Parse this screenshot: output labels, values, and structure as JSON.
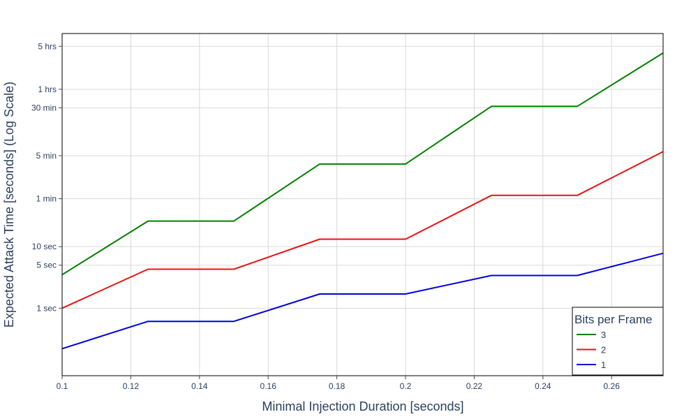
{
  "chart_data": {
    "type": "line",
    "title": "",
    "xlabel": "Minimal Injection Duration [seconds]",
    "ylabel": "Expected Attack Time [seconds] (Log Scale)",
    "y_scale": "log",
    "grid": true,
    "legend_position": "bottom-right",
    "xlim": [
      0.1,
      0.275
    ],
    "ylim_seconds": [
      0.08,
      29000
    ],
    "x_ticks": [
      {
        "value": 0.1,
        "label": "0.1"
      },
      {
        "value": 0.12,
        "label": "0.12"
      },
      {
        "value": 0.14,
        "label": "0.14"
      },
      {
        "value": 0.16,
        "label": "0.16"
      },
      {
        "value": 0.18,
        "label": "0.18"
      },
      {
        "value": 0.2,
        "label": "0.2"
      },
      {
        "value": 0.22,
        "label": "0.22"
      },
      {
        "value": 0.24,
        "label": "0.24"
      },
      {
        "value": 0.26,
        "label": "0.26"
      }
    ],
    "y_ticks": [
      {
        "value": 1,
        "label": "1 sec"
      },
      {
        "value": 5,
        "label": "5 sec"
      },
      {
        "value": 10,
        "label": "10 sec"
      },
      {
        "value": 60,
        "label": "1 min"
      },
      {
        "value": 300,
        "label": "5 min"
      },
      {
        "value": 1800,
        "label": "30 min"
      },
      {
        "value": 3600,
        "label": "1 hrs"
      },
      {
        "value": 18000,
        "label": "5 hrs"
      }
    ],
    "x": [
      0.1,
      0.125,
      0.15,
      0.175,
      0.2,
      0.225,
      0.25,
      0.275
    ],
    "legend_title": "Bits per Frame",
    "series": [
      {
        "name": "3",
        "color": "#008000",
        "values": [
          3.5,
          26,
          26,
          220,
          220,
          1900,
          1900,
          14000
        ]
      },
      {
        "name": "2",
        "color": "#ee1111",
        "values": [
          1.0,
          4.3,
          4.3,
          13.2,
          13.2,
          68,
          68,
          350
        ]
      },
      {
        "name": "1",
        "color": "#0000dd",
        "values": [
          0.22,
          0.61,
          0.61,
          1.7,
          1.7,
          3.4,
          3.4,
          7.8
        ]
      }
    ]
  }
}
